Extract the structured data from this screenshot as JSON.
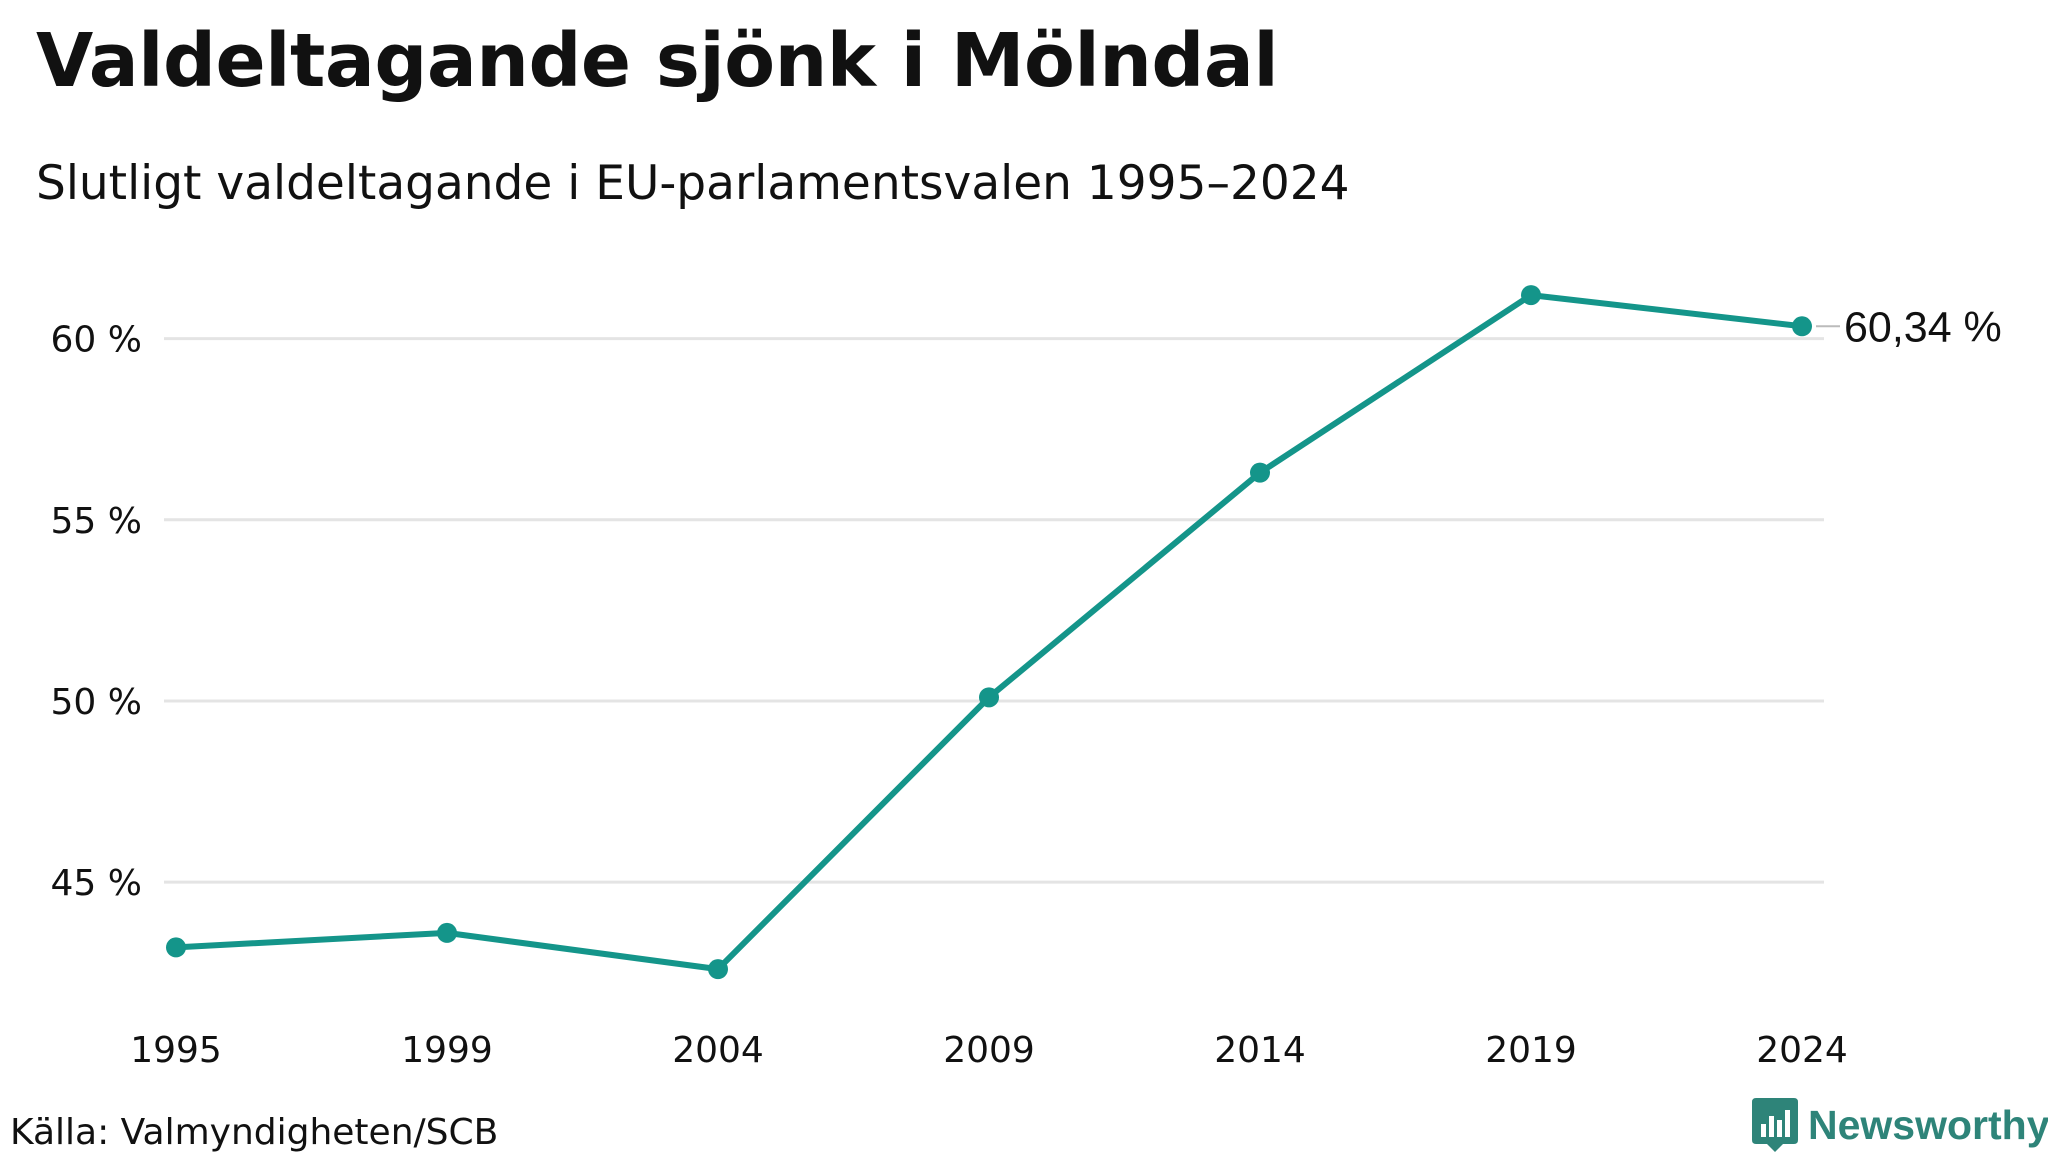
{
  "title": "Valdeltagande sjönk i Mölndal",
  "subtitle": "Slutligt valdeltagande i EU-parlamentsvalen 1995–2024",
  "source": "Källa: Valmyndigheten/SCB",
  "brand": {
    "name": "Newsworthy",
    "logo_icon": "bar-chart-badge-icon"
  },
  "colors": {
    "series": "#14958a",
    "grid": "#e4e4e4",
    "text": "#111111",
    "brand": "#2e8479"
  },
  "chart_data": {
    "type": "line",
    "x": [
      "1995",
      "1999",
      "2004",
      "2009",
      "2014",
      "2019",
      "2024"
    ],
    "series": [
      {
        "values": [
          43.2,
          43.6,
          42.6,
          50.1,
          56.3,
          61.2,
          60.34
        ]
      }
    ],
    "ylim": [
      41.5,
      62.5
    ],
    "yticks": [
      45,
      50,
      55,
      60
    ],
    "ytick_labels": [
      "45 %",
      "50 %",
      "55 %",
      "60 %"
    ],
    "end_label": "60,34 %",
    "xlabel": "",
    "ylabel": "",
    "grid": "horizontal",
    "markers": true
  }
}
